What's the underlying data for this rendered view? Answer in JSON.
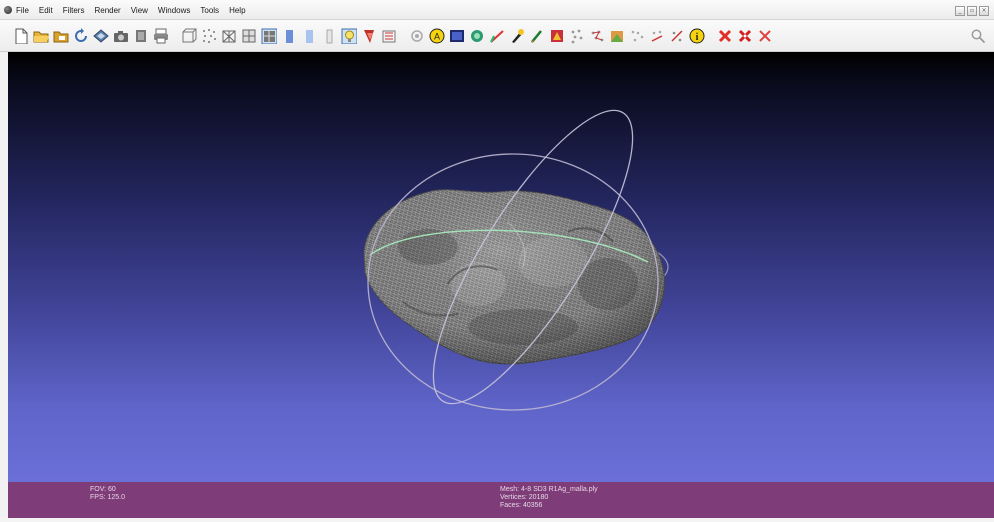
{
  "menu": {
    "items": [
      "File",
      "Edit",
      "Filters",
      "Render",
      "View",
      "Windows",
      "Tools",
      "Help"
    ]
  },
  "window_controls": [
    "_",
    "▫",
    "×"
  ],
  "toolbar": {
    "icons": [
      "new-file-icon",
      "open-folder-icon",
      "open-project-icon",
      "reload-icon",
      "save-mesh-icon",
      "snapshot-icon",
      "layer-icon",
      "print-icon",
      "bounding-box-icon",
      "points-icon",
      "wireframe-icon",
      "hidden-lines-icon",
      "flat-lines-icon",
      "flat-shading-icon",
      "smooth-shading-icon",
      "texture-icon",
      "light-icon",
      "backface-icon",
      "double-side-icon",
      "target-icon",
      "annotation-icon",
      "color-picker-icon",
      "paint-icon",
      "measure-icon",
      "pick-points-icon",
      "brush-icon",
      "select-faces-icon",
      "select-vertices-icon",
      "select-connected-icon",
      "select-area-icon",
      "align-icon",
      "georef-icon",
      "raster-icon",
      "info-icon",
      "delete-faces-icon",
      "delete-vertices-icon",
      "delete-selection-icon"
    ],
    "search_icon": "search-icon"
  },
  "viewport": {
    "trackball_color_a": "#b9b5c9",
    "trackball_color_b": "#c7c3d5",
    "trackball_color_c": "#9fe0b0",
    "mesh_color": "#8a8a8a"
  },
  "status": {
    "fov": "FOV: 60",
    "fps": "FPS:  125.0",
    "mesh": "Mesh: 4-8 SD3 R1Ag_malla.ply",
    "vertices": "Vertices: 20180",
    "faces": "Faces: 40356"
  },
  "colors": {
    "statusbar": "#7e3d79",
    "viewport_top": "#000000",
    "viewport_bottom": "#6b70d8"
  }
}
